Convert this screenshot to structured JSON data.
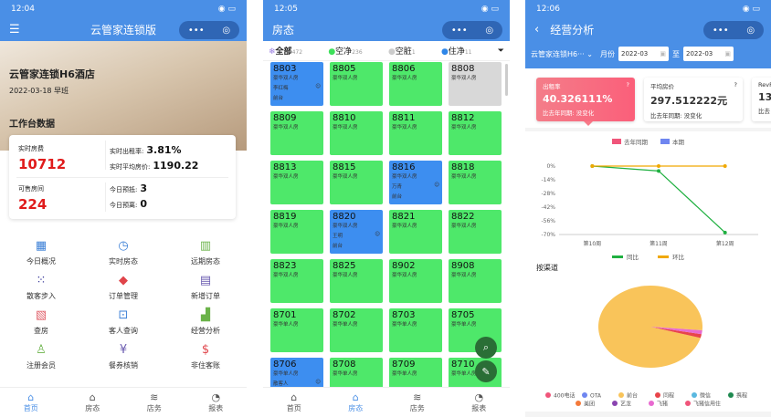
{
  "home": {
    "time": "12:04",
    "title": "云管家连锁版",
    "hotel": "云管家连锁H6酒店",
    "date_shift": "2022-03-18 早班",
    "section": "工作台数据",
    "stats": {
      "fee_label": "实时房费",
      "fee": "10712",
      "rooms_label": "可售房间",
      "rooms": "224",
      "occ_label": "实时出租率:",
      "occ": "3.81%",
      "avg_label": "实时平均房价:",
      "avg": "1190.22",
      "arr_label": "今日预抵:",
      "arr": "3",
      "dep_label": "今日预离:",
      "dep": "0"
    },
    "menu": [
      {
        "label": "今日概况",
        "icon": "grid-icon",
        "color": "#3b7fd6",
        "glyph": "▦"
      },
      {
        "label": "实时房态",
        "icon": "clock-icon",
        "color": "#3b7fd6",
        "glyph": "◷"
      },
      {
        "label": "远期房态",
        "icon": "building-icon",
        "color": "#6bb34a",
        "glyph": "▥"
      },
      {
        "label": "散客步入",
        "icon": "dots-icon",
        "color": "#3a3a9a",
        "glyph": "⁙"
      },
      {
        "label": "订单管理",
        "icon": "tag-icon",
        "color": "#e0444a",
        "glyph": "◆"
      },
      {
        "label": "新增订单",
        "icon": "clipboard-icon",
        "color": "#6a5bb0",
        "glyph": "▤"
      },
      {
        "label": "查房",
        "icon": "inspect-icon",
        "color": "#e0606a",
        "glyph": "▧"
      },
      {
        "label": "客人查询",
        "icon": "search-guest-icon",
        "color": "#3b7fd6",
        "glyph": "⊡"
      },
      {
        "label": "经营分析",
        "icon": "bar-chart-icon",
        "color": "#6bb34a",
        "glyph": "▟"
      },
      {
        "label": "注册会员",
        "icon": "user-icon",
        "color": "#6bb34a",
        "glyph": "♙"
      },
      {
        "label": "餐券核销",
        "icon": "coupon-icon",
        "color": "#6a5bb0",
        "glyph": "¥"
      },
      {
        "label": "非住客账",
        "icon": "bill-icon",
        "color": "#e0444a",
        "glyph": "$"
      }
    ]
  },
  "tabs": [
    {
      "label": "首页",
      "icon": "home-icon"
    },
    {
      "label": "房态",
      "icon": "room-status-icon"
    },
    {
      "label": "店务",
      "icon": "layers-icon"
    },
    {
      "label": "报表",
      "icon": "pie-icon"
    }
  ],
  "rooms_page": {
    "time": "12:05",
    "title": "房态",
    "filters": [
      {
        "label": "全部",
        "count": "472",
        "color": "#9b7fe0"
      },
      {
        "label": "空净",
        "count": "236",
        "color": "#3ee05a"
      },
      {
        "label": "空脏",
        "count": "1",
        "color": "#cccccc"
      },
      {
        "label": "住净",
        "count": "11",
        "color": "#2f86e8"
      }
    ],
    "status_colors": {
      "vacant_clean": "#4ee86a",
      "vacant_dirty": "#d8d8d8",
      "occupied": "#3d8ef0"
    },
    "rooms": [
      {
        "no": "8803",
        "type": "豪华双人房",
        "status": "occupied",
        "guest": "李红梅",
        "source": "前台"
      },
      {
        "no": "8805",
        "type": "豪华双人房",
        "status": "vacant_clean"
      },
      {
        "no": "8806",
        "type": "豪华双人房",
        "status": "vacant_clean"
      },
      {
        "no": "8808",
        "type": "豪华双人房",
        "status": "vacant_dirty"
      },
      {
        "no": "8809",
        "type": "豪华双人房",
        "status": "vacant_clean"
      },
      {
        "no": "8810",
        "type": "豪华双人房",
        "status": "vacant_clean"
      },
      {
        "no": "8811",
        "type": "豪华双人房",
        "status": "vacant_clean"
      },
      {
        "no": "8812",
        "type": "豪华双人房",
        "status": "vacant_clean"
      },
      {
        "no": "8813",
        "type": "豪华双人房",
        "status": "vacant_clean"
      },
      {
        "no": "8815",
        "type": "豪华双人房",
        "status": "vacant_clean"
      },
      {
        "no": "8816",
        "type": "豪华双人房",
        "status": "occupied",
        "guest": "万青",
        "source": "前台"
      },
      {
        "no": "8818",
        "type": "豪华双人房",
        "status": "vacant_clean"
      },
      {
        "no": "8819",
        "type": "豪华双人房",
        "status": "vacant_clean"
      },
      {
        "no": "8820",
        "type": "豪华双人房",
        "status": "occupied",
        "guest": "王明",
        "source": "前台"
      },
      {
        "no": "8821",
        "type": "豪华双人房",
        "status": "vacant_clean"
      },
      {
        "no": "8822",
        "type": "豪华双人房",
        "status": "vacant_clean"
      },
      {
        "no": "8823",
        "type": "豪华双人房",
        "status": "vacant_clean"
      },
      {
        "no": "8825",
        "type": "豪华双人房",
        "status": "vacant_clean"
      },
      {
        "no": "8902",
        "type": "豪华双人房",
        "status": "vacant_clean"
      },
      {
        "no": "8908",
        "type": "豪华双人房",
        "status": "vacant_clean"
      },
      {
        "no": "8701",
        "type": "豪华单人房",
        "status": "vacant_clean"
      },
      {
        "no": "8702",
        "type": "豪华单人房",
        "status": "vacant_clean"
      },
      {
        "no": "8703",
        "type": "豪华单人房",
        "status": "vacant_clean"
      },
      {
        "no": "8705",
        "type": "豪华单人房",
        "status": "vacant_clean"
      },
      {
        "no": "8706",
        "type": "豪华单人房",
        "status": "occupied",
        "guest": "散客人"
      },
      {
        "no": "8708",
        "type": "豪华单人房",
        "status": "vacant_clean"
      },
      {
        "no": "8709",
        "type": "豪华单人房",
        "status": "vacant_clean"
      },
      {
        "no": "8710",
        "type": "豪华单人房",
        "status": "vacant_clean"
      }
    ]
  },
  "analysis": {
    "time": "12:06",
    "title": "经营分析",
    "hotel_select": "云管家连锁H6···",
    "month_label": "月份",
    "from": "2022-03",
    "to_label": "至",
    "to": "2022-03",
    "cards": [
      {
        "label": "出租率",
        "value": "40.326111%",
        "compare": "比去年同期: 没变化"
      },
      {
        "label": "平均房价",
        "value": "297.512222元",
        "compare": "比去年同期: 没变化"
      },
      {
        "label": "RevPAR",
        "value": "13",
        "compare": "比去"
      }
    ],
    "bar_legend": [
      {
        "name": "去年同期",
        "color": "#f0557a"
      },
      {
        "name": "本期",
        "color": "#6f86f0"
      }
    ],
    "channel_title": "按渠道"
  },
  "chart_data": [
    {
      "type": "line",
      "categories": [
        "第10周",
        "第11周",
        "第12周"
      ],
      "yticks": [
        "0%",
        "-14%",
        "-28%",
        "-42%",
        "-56%",
        "-70%"
      ],
      "ylim": [
        -70,
        0
      ],
      "series": [
        {
          "name": "同比",
          "color": "#1fb040",
          "values": [
            0,
            -5,
            -68
          ]
        },
        {
          "name": "环比",
          "color": "#f0a800",
          "values": [
            0,
            0,
            0
          ]
        }
      ],
      "legend": "bottom"
    },
    {
      "type": "pie",
      "legend": "bottom",
      "slices": [
        {
          "name": "400电话",
          "value": 0,
          "color": "#f0557a"
        },
        {
          "name": "OTA",
          "value": 0,
          "color": "#6f86f0"
        },
        {
          "name": "前台",
          "value": 97,
          "color": "#f9c45a"
        },
        {
          "name": "同程",
          "value": 1.5,
          "color": "#e8444a"
        },
        {
          "name": "微信",
          "value": 0,
          "color": "#5ab8e0"
        },
        {
          "name": "携程",
          "value": 0,
          "color": "#1f8a50"
        },
        {
          "name": "美团",
          "value": 0,
          "color": "#f47a3a"
        },
        {
          "name": "艺龙",
          "value": 0,
          "color": "#8a44b0"
        },
        {
          "name": "飞猪",
          "value": 1.5,
          "color": "#e86ad0"
        },
        {
          "name": "飞猪信用住",
          "value": 0,
          "color": "#f0557a"
        }
      ]
    }
  ]
}
